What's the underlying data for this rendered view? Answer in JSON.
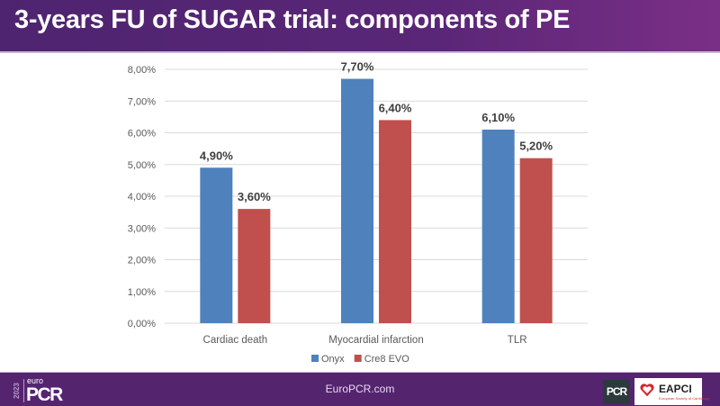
{
  "header": {
    "title": "3-years FU of SUGAR trial: components of PE"
  },
  "footer": {
    "url": "EuroPCR.com",
    "logo": {
      "year": "2023",
      "prefix": "euro",
      "name": "PCR"
    },
    "pcr_badge": "PCR",
    "eapci": {
      "name": "EAPCI",
      "subtitle": "European Society of Cardiology"
    }
  },
  "colors": {
    "header": "#55246f",
    "onyx": "#4f81bd",
    "cre8": "#c0504d",
    "grid": "#d9d9d9"
  },
  "chart_data": {
    "type": "bar",
    "title": "",
    "xlabel": "",
    "ylabel": "",
    "categories": [
      "Cardiac death",
      "Myocardial infarction",
      "TLR"
    ],
    "series": [
      {
        "name": "Onyx",
        "values": [
          4.9,
          7.7,
          6.1
        ],
        "labels": [
          "4,90%",
          "7,70%",
          "6,10%"
        ],
        "color": "#4f81bd"
      },
      {
        "name": "Cre8 EVO",
        "values": [
          3.6,
          6.4,
          5.2
        ],
        "labels": [
          "3,60%",
          "6,40%",
          "5,20%"
        ],
        "color": "#c0504d"
      }
    ],
    "ylim": [
      0,
      8
    ],
    "yticks": [
      0,
      1,
      2,
      3,
      4,
      5,
      6,
      7,
      8
    ],
    "ytick_labels": [
      "0,00%",
      "1,00%",
      "2,00%",
      "3,00%",
      "4,00%",
      "5,00%",
      "6,00%",
      "7,00%",
      "8,00%"
    ],
    "grid": true,
    "legend_position": "bottom"
  }
}
